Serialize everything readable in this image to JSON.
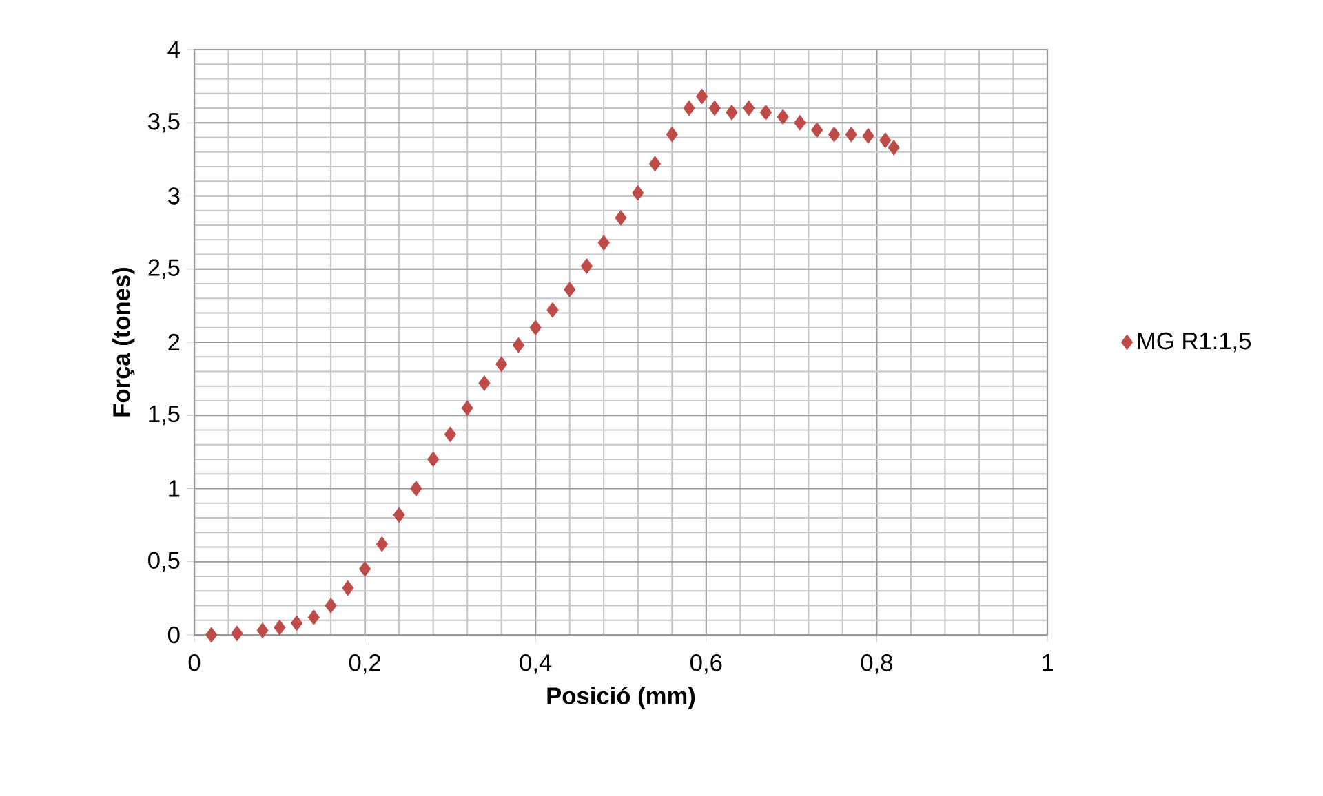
{
  "chart_data": {
    "type": "scatter",
    "xlabel": "Posició (mm)",
    "ylabel": "Força (tones)",
    "x": [
      0.02,
      0.05,
      0.08,
      0.1,
      0.12,
      0.14,
      0.16,
      0.18,
      0.2,
      0.22,
      0.24,
      0.26,
      0.28,
      0.3,
      0.32,
      0.34,
      0.36,
      0.38,
      0.4,
      0.42,
      0.44,
      0.46,
      0.48,
      0.5,
      0.52,
      0.54,
      0.56,
      0.58,
      0.595,
      0.61,
      0.63,
      0.65,
      0.67,
      0.69,
      0.71,
      0.73,
      0.75,
      0.77,
      0.79,
      0.81,
      0.82
    ],
    "series": [
      {
        "name": "MG R1:1,5",
        "color": "#be4b48",
        "values": [
          0.0,
          0.01,
          0.03,
          0.05,
          0.08,
          0.12,
          0.2,
          0.32,
          0.45,
          0.62,
          0.82,
          1.0,
          1.2,
          1.37,
          1.55,
          1.72,
          1.85,
          1.98,
          2.1,
          2.22,
          2.36,
          2.52,
          2.68,
          2.85,
          3.02,
          3.22,
          3.42,
          3.6,
          3.68,
          3.6,
          3.57,
          3.6,
          3.57,
          3.54,
          3.5,
          3.45,
          3.42,
          3.42,
          3.41,
          3.38,
          3.33
        ]
      }
    ],
    "xlim": [
      0,
      1
    ],
    "ylim": [
      0,
      4
    ],
    "xticks": [
      0,
      {
        "value": 0.2,
        "label": "0,2"
      },
      {
        "value": 0.4,
        "label": "0,4"
      },
      {
        "value": 0.6,
        "label": "0,6"
      },
      {
        "value": 0.8,
        "label": "0,8"
      },
      1
    ],
    "yticks": [
      0,
      {
        "value": 0.5,
        "label": "0,5"
      },
      1,
      {
        "value": 1.5,
        "label": "1,5"
      },
      2,
      {
        "value": 2.5,
        "label": "2,5"
      },
      3,
      {
        "value": 3.5,
        "label": "3,5"
      },
      4
    ],
    "grid": true,
    "legend": "right",
    "marker": "diamond"
  }
}
